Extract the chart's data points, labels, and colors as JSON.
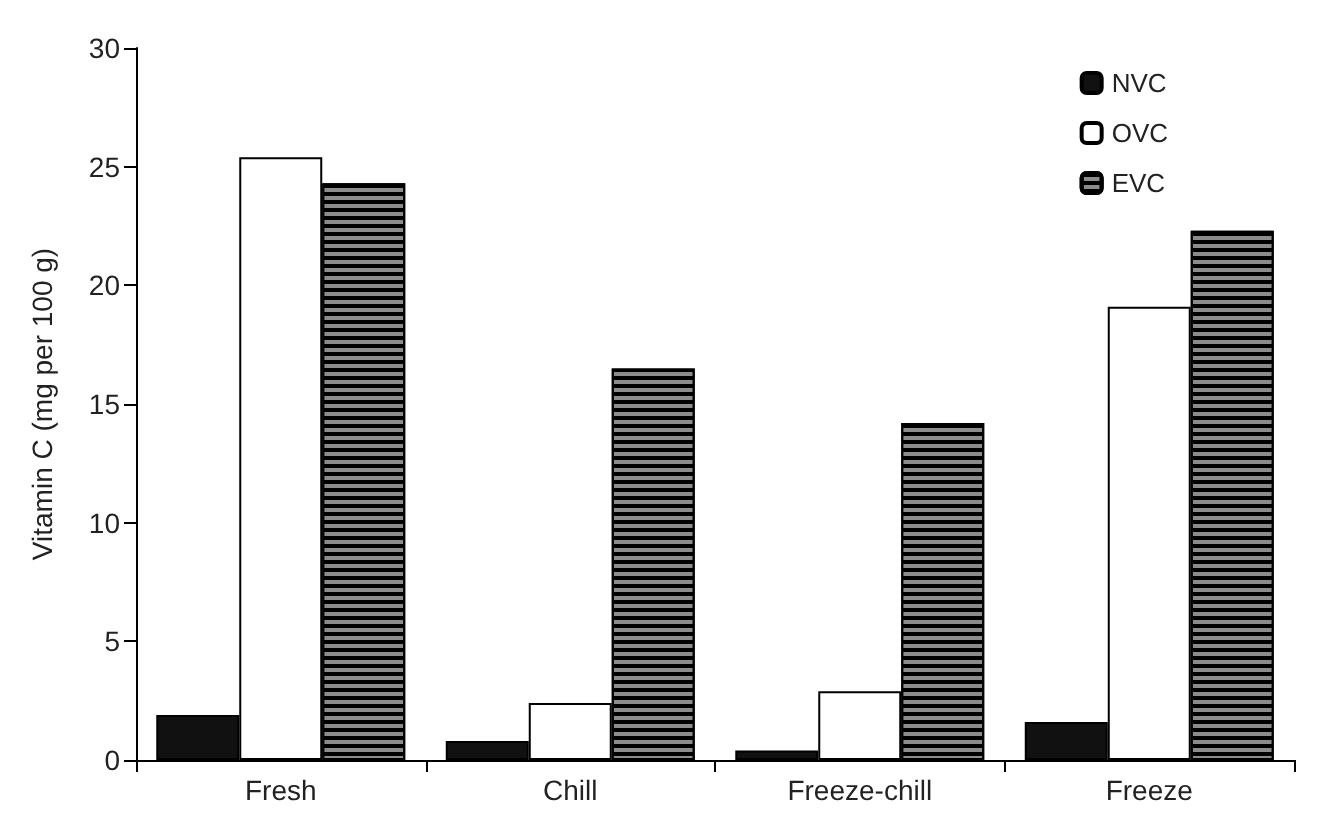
{
  "chart_data": {
    "type": "bar",
    "ylabel": "Vitamin C (mg per 100 g)",
    "categories": [
      "Fresh",
      "Chill",
      "Freeze-chill",
      "Freeze"
    ],
    "series": [
      {
        "name": "NVC",
        "color": "#111111",
        "values": [
          1.9,
          0.8,
          0.4,
          1.6
        ]
      },
      {
        "name": "OVC",
        "color": "#ffffff",
        "values": [
          25.4,
          2.4,
          2.9,
          19.1
        ]
      },
      {
        "name": "EVC",
        "color": "#8c8c8c",
        "values": [
          24.3,
          16.5,
          14.2,
          22.3
        ]
      }
    ],
    "ylim": [
      0,
      30
    ],
    "yticks": [
      0,
      5,
      10,
      15,
      20,
      25,
      30
    ],
    "grid": false,
    "legend": "top right"
  }
}
